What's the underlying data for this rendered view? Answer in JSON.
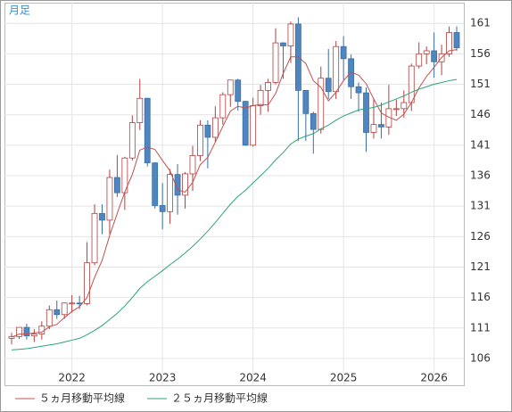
{
  "chart_data": {
    "type": "candlestick",
    "title": "月足",
    "categories": [
      null,
      null,
      null,
      null,
      null,
      null,
      null,
      null,
      "2022",
      null,
      null,
      null,
      null,
      null,
      null,
      null,
      null,
      null,
      null,
      null,
      "2023",
      null,
      null,
      null,
      null,
      null,
      null,
      null,
      null,
      null,
      null,
      null,
      "2024",
      null,
      null,
      null,
      null,
      null,
      null,
      null,
      null,
      null,
      null,
      null,
      "2025",
      null,
      null,
      null,
      null,
      null,
      null,
      null,
      null,
      null,
      null,
      null,
      "2026",
      null,
      null,
      null
    ],
    "open": [
      109.3,
      109.6,
      111.1,
      109.7,
      110.0,
      111.3,
      114.0,
      113.2,
      115.1,
      115.1,
      115.0,
      121.7,
      129.8,
      128.7,
      135.7,
      133.2,
      138.9,
      144.7,
      148.7,
      138.1,
      131.1,
      130.1,
      136.2,
      132.8,
      136.3,
      139.3,
      144.3,
      142.3,
      145.5,
      149.3,
      151.7,
      148.2,
      141.0,
      147.5,
      150.0,
      151.3,
      157.8,
      157.3,
      160.9,
      150.0,
      146.2,
      143.6,
      152.0,
      149.8,
      157.2,
      155.2,
      150.6,
      149.6,
      143.1,
      144.4,
      144.0,
      147.0,
      147.0,
      148.0,
      154.0,
      156.0,
      156.5,
      154.7,
      156.0,
      159.5
    ],
    "high": [
      110.2,
      111.1,
      111.7,
      110.8,
      112.1,
      114.7,
      115.5,
      115.2,
      116.4,
      116.3,
      125.1,
      131.3,
      131.3,
      137.0,
      139.4,
      139.1,
      145.9,
      151.9,
      148.8,
      138.2,
      134.8,
      137.1,
      137.9,
      136.6,
      140.9,
      145.1,
      145.1,
      147.4,
      149.7,
      151.7,
      151.9,
      148.3,
      148.8,
      150.9,
      151.9,
      160.2,
      157.9,
      161.3,
      162.0,
      150.0,
      146.5,
      153.9,
      156.8,
      158.1,
      158.9,
      155.9,
      151.3,
      150.5,
      148.7,
      148.0,
      150.9,
      148.5,
      150.0,
      154.4,
      157.9,
      157.2,
      159.5,
      157.5,
      160.5,
      160.5
    ],
    "low": [
      108.3,
      109.2,
      109.1,
      108.7,
      109.1,
      110.8,
      112.5,
      112.5,
      113.5,
      114.1,
      114.7,
      121.3,
      126.4,
      126.4,
      132.5,
      130.4,
      138.5,
      143.5,
      137.5,
      130.6,
      127.2,
      128.1,
      129.6,
      130.6,
      133.5,
      138.4,
      137.2,
      141.5,
      144.4,
      147.3,
      146.7,
      140.9,
      140.8,
      146.0,
      146.5,
      151.0,
      151.9,
      154.5,
      141.7,
      141.7,
      139.6,
      142.9,
      148.6,
      148.6,
      151.7,
      148.6,
      146.5,
      139.9,
      142.1,
      142.1,
      142.7,
      145.8,
      145.5,
      146.6,
      153.6,
      154.3,
      152.1,
      152.5,
      155.5,
      156.5
    ],
    "close": [
      109.6,
      111.1,
      109.7,
      110.0,
      111.3,
      114.0,
      113.2,
      115.1,
      115.1,
      115.0,
      121.7,
      129.8,
      128.7,
      135.7,
      133.2,
      138.9,
      144.7,
      148.7,
      138.1,
      131.1,
      130.1,
      136.2,
      132.8,
      136.3,
      139.3,
      144.3,
      142.3,
      145.5,
      149.3,
      151.7,
      148.2,
      141.0,
      147.5,
      150.0,
      151.3,
      157.8,
      157.3,
      160.9,
      150.0,
      146.2,
      143.6,
      152.0,
      149.8,
      157.2,
      155.2,
      150.6,
      149.6,
      143.1,
      144.4,
      144.0,
      147.0,
      147.0,
      148.0,
      154.0,
      156.0,
      156.5,
      154.7,
      156.0,
      159.5,
      157.0
    ],
    "up_color": "#ffffff",
    "up_edge": "#b04040",
    "down_color": "#4f86bf",
    "down_edge": "#3a6fa5",
    "series": [
      {
        "name": "５ヵ月移動平均線",
        "color": "#c0504d",
        "values": [
          109.5,
          110.0,
          110.0,
          110.2,
          110.3,
          111.2,
          111.6,
          112.7,
          113.7,
          114.5,
          116.0,
          119.3,
          122.1,
          126.2,
          129.8,
          133.3,
          136.2,
          140.2,
          140.7,
          140.3,
          138.5,
          136.8,
          133.7,
          133.3,
          134.9,
          137.8,
          139.0,
          141.5,
          144.1,
          146.6,
          147.4,
          147.1,
          147.5,
          147.7,
          147.6,
          149.5,
          152.8,
          155.5,
          155.5,
          154.4,
          151.6,
          150.5,
          148.3,
          149.7,
          151.6,
          153.0,
          152.5,
          151.1,
          148.6,
          146.3,
          145.6,
          145.1,
          146.1,
          148.0,
          150.4,
          152.3,
          153.8,
          155.4,
          156.5,
          156.7
        ]
      },
      {
        "name": "２５ヵ月移動平均線",
        "color": "#2ea37a",
        "values": [
          107.4,
          107.5,
          107.6,
          107.8,
          108.0,
          108.2,
          108.4,
          108.7,
          109.0,
          109.3,
          109.9,
          110.6,
          111.4,
          112.4,
          113.4,
          114.6,
          116.0,
          117.5,
          118.6,
          119.5,
          120.4,
          121.4,
          122.3,
          123.3,
          124.4,
          125.6,
          126.9,
          128.3,
          129.8,
          131.3,
          132.6,
          133.6,
          134.8,
          136.0,
          137.2,
          138.6,
          139.8,
          141.2,
          142.0,
          142.5,
          142.9,
          143.7,
          144.3,
          145.1,
          145.8,
          146.3,
          146.8,
          147.0,
          147.2,
          147.6,
          148.1,
          148.6,
          149.1,
          149.7,
          150.2,
          150.6,
          151.0,
          151.3,
          151.6,
          151.8
        ]
      }
    ],
    "ylim": [
      101.6,
      164.4
    ],
    "yticks": [
      106,
      111,
      116,
      121,
      126,
      131,
      136,
      141,
      146,
      151,
      156,
      161
    ],
    "grid": true
  }
}
